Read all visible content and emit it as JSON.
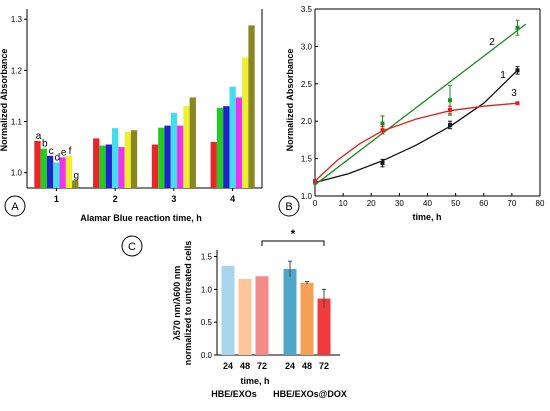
{
  "chart_data": [
    {
      "panel": "A",
      "type": "bar",
      "xlabel": "Alamar Blue reaction time, h",
      "ylabel": "Normalized Absorbance",
      "categories": [
        "1",
        "2",
        "3",
        "4"
      ],
      "ylim": [
        0.97,
        1.32
      ],
      "yticks": [
        "1.0",
        "1.1",
        "1.2",
        "1.3"
      ],
      "ytick_values": [
        1.0,
        1.1,
        1.2,
        1.3
      ],
      "bar_labels": [
        "a",
        "b",
        "c",
        "d",
        "e",
        "f",
        "g"
      ],
      "series": [
        {
          "name": "a",
          "color": "#e8262a",
          "values": [
            1.062,
            1.067,
            1.055,
            1.06
          ]
        },
        {
          "name": "b",
          "color": "#22cc22",
          "values": [
            1.047,
            1.053,
            1.088,
            1.127
          ]
        },
        {
          "name": "c",
          "color": "#2222cc",
          "values": [
            1.033,
            1.055,
            1.092,
            1.13
          ]
        },
        {
          "name": "d",
          "color": "#44ddee",
          "values": [
            1.02,
            1.087,
            1.117,
            1.168
          ]
        },
        {
          "name": "e",
          "color": "#ee33ee",
          "values": [
            1.03,
            1.05,
            1.092,
            1.147
          ]
        },
        {
          "name": "f",
          "color": "#eeee33",
          "values": [
            1.033,
            1.08,
            1.13,
            1.225
          ]
        },
        {
          "name": "g",
          "color": "#888822",
          "values": [
            0.985,
            1.083,
            1.147,
            1.288
          ]
        }
      ]
    },
    {
      "panel": "B",
      "type": "scatter",
      "xlabel": "time, h",
      "ylabel": "Normalized Absorbance",
      "xlim": [
        0,
        80
      ],
      "ylim": [
        1.0,
        3.5
      ],
      "xticks": [
        "0",
        "10",
        "20",
        "30",
        "40",
        "50",
        "60",
        "70",
        "80"
      ],
      "xtick_values": [
        0,
        10,
        20,
        30,
        40,
        50,
        60,
        70,
        80
      ],
      "yticks": [
        "1.0",
        "1.5",
        "2.0",
        "2.5",
        "3.0",
        "3.5"
      ],
      "ytick_values": [
        1.0,
        1.5,
        2.0,
        2.5,
        3.0,
        3.5
      ],
      "series": [
        {
          "name": "1",
          "color": "#111111",
          "x": [
            0,
            24,
            48,
            72
          ],
          "y": [
            1.18,
            1.44,
            1.95,
            2.68
          ],
          "err": [
            0.0,
            0.05,
            0.05,
            0.05
          ],
          "fit": [
            [
              0,
              1.18
            ],
            [
              12,
              1.3
            ],
            [
              24,
              1.47
            ],
            [
              36,
              1.68
            ],
            [
              48,
              1.93
            ],
            [
              60,
              2.24
            ],
            [
              72,
              2.68
            ]
          ]
        },
        {
          "name": "2",
          "color": "#1e8a1e",
          "x": [
            0,
            24,
            48,
            72
          ],
          "y": [
            1.18,
            1.97,
            2.28,
            3.25
          ],
          "err": [
            0.0,
            0.1,
            0.2,
            0.1
          ],
          "fit": [
            [
              0,
              1.15
            ],
            [
              75,
              3.3
            ]
          ]
        },
        {
          "name": "3",
          "color": "#e02020",
          "x": [
            0,
            24,
            48,
            72
          ],
          "y": [
            1.2,
            1.88,
            2.15,
            2.24
          ],
          "err": [
            0.0,
            0.05,
            0.05,
            0.0
          ],
          "fit": [
            [
              0,
              1.2
            ],
            [
              8,
              1.48
            ],
            [
              16,
              1.7
            ],
            [
              24,
              1.87
            ],
            [
              36,
              2.03
            ],
            [
              48,
              2.14
            ],
            [
              60,
              2.2
            ],
            [
              72,
              2.24
            ]
          ]
        }
      ],
      "curve_labels": [
        "1",
        "2",
        "3"
      ]
    },
    {
      "panel": "C",
      "type": "bar",
      "ylabel_line1": "λ570 nm/λ600 nm",
      "ylabel_line2": "normalized to untreated cells",
      "xlabel": "time, h",
      "ylim": [
        0,
        1.6
      ],
      "yticks": [
        "0.0",
        "0.5",
        "1.0",
        "1.5"
      ],
      "ytick_values": [
        0,
        0.5,
        1.0,
        1.5
      ],
      "categories": [
        "24",
        "48",
        "72",
        "24",
        "48",
        "72"
      ],
      "groups": [
        "HBE/EXOs",
        "HBE/EXOs@DOX"
      ],
      "values": [
        1.36,
        1.16,
        1.2,
        1.31,
        1.1,
        0.86
      ],
      "errors": [
        0,
        0,
        0,
        0.12,
        0.02,
        0.14
      ],
      "colors": [
        "#a8d4ec",
        "#fbc79a",
        "#f58a8a",
        "#4fa8cc",
        "#f5a057",
        "#ef3b3b"
      ],
      "significance": "*"
    }
  ],
  "panels": {
    "a": "A",
    "b": "B",
    "c": "C"
  }
}
